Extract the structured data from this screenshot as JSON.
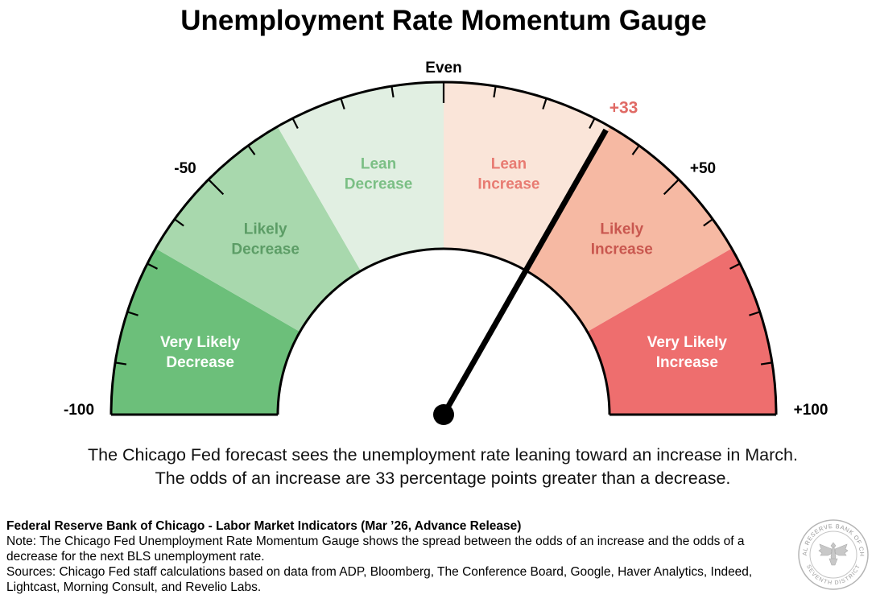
{
  "chart_data": {
    "type": "gauge",
    "title": "Unemployment Rate Momentum Gauge",
    "range": [
      -100,
      100
    ],
    "value": 33,
    "value_label": "+33",
    "tick_labels": [
      {
        "value": -100,
        "label": "-100"
      },
      {
        "value": -50,
        "label": "-50"
      },
      {
        "value": 0,
        "label": "Even"
      },
      {
        "value": 50,
        "label": "+50"
      },
      {
        "value": 100,
        "label": "+100"
      }
    ],
    "minor_tick_step": 10,
    "segments": [
      {
        "from": -100,
        "to": -66.7,
        "label_lines": [
          "Very Likely",
          "Decrease"
        ],
        "color": "#6cbf7a",
        "text_color": "#ffffff"
      },
      {
        "from": -66.7,
        "to": -33.3,
        "label_lines": [
          "Likely",
          "Decrease"
        ],
        "color": "#a8d8ad",
        "text_color": "#5c9d66"
      },
      {
        "from": -33.3,
        "to": 0,
        "label_lines": [
          "Lean",
          "Decrease"
        ],
        "color": "#e1efe2",
        "text_color": "#7bbf85"
      },
      {
        "from": 0,
        "to": 33.3,
        "label_lines": [
          "Lean",
          "Increase"
        ],
        "color": "#fae5d9",
        "text_color": "#e87b72"
      },
      {
        "from": 33.3,
        "to": 66.7,
        "label_lines": [
          "Likely",
          "Increase"
        ],
        "color": "#f6b9a3",
        "text_color": "#c9574f"
      },
      {
        "from": 66.7,
        "to": 100,
        "label_lines": [
          "Very Likely",
          "Increase"
        ],
        "color": "#ee6e6e",
        "text_color": "#ffffff"
      }
    ],
    "value_color": "#e06a65"
  },
  "summary": {
    "line1": "The Chicago Fed forecast sees the unemployment rate leaning toward an increase in March.",
    "line2": "The odds of an increase are 33 percentage points greater than a decrease."
  },
  "footer": {
    "title": "Federal Reserve Bank of Chicago - Labor Market Indicators (Mar ’26, Advance Release)",
    "note": "Note: The Chicago Fed Unemployment Rate Momentum Gauge shows the spread between the odds of an increase and the odds of a decrease for the next BLS unemployment rate.",
    "sources": "Sources: Chicago Fed staff calculations based on data from ADP, Bloomberg, The Conference Board, Google, Haver Analytics, Indeed, Lightcast, Morning Consult, and Revelio Labs."
  },
  "seal": {
    "text_top": "FEDERAL RESERVE BANK OF CHICAGO",
    "text_bottom": "SEVENTH DISTRICT"
  }
}
